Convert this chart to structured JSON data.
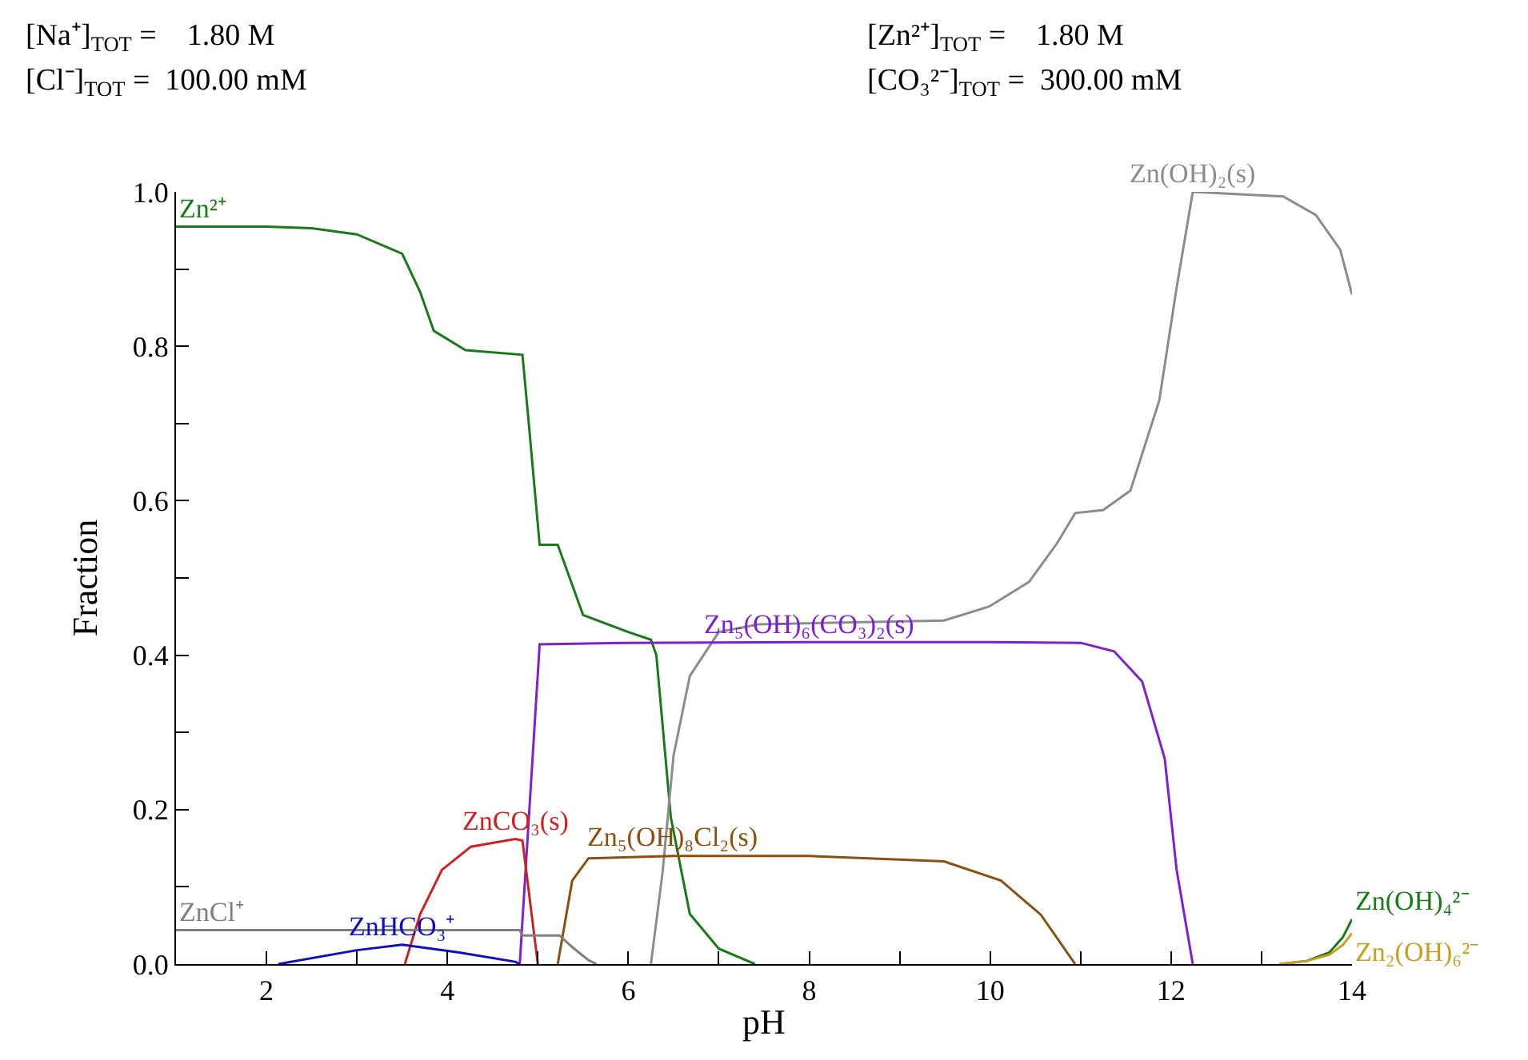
{
  "chart_data": {
    "type": "line",
    "xlabel": "pH",
    "ylabel": "Fraction",
    "annotations": [
      "[Na⁺]$_{TOT}$ =    1.80 M",
      "[Cl⁻]$_{TOT}$ =  100.00 mM",
      "[Zn²⁺]$_{TOT}$ =    1.80 M",
      "[CO₃²⁻]$_{TOT}$ =  300.00 mM"
    ],
    "xlim": [
      1,
      14
    ],
    "ylim": [
      0,
      1.0
    ],
    "xticks": [
      2,
      {
        "value": 3,
        "label": null
      },
      4,
      {
        "value": 5,
        "label": null
      },
      6,
      {
        "value": 7,
        "label": null
      },
      8,
      {
        "value": 9,
        "label": null
      },
      10,
      {
        "value": 11,
        "label": null
      },
      12,
      {
        "value": 13,
        "label": null
      },
      14
    ],
    "yticks": [
      {
        "value": 0,
        "label": "0.0"
      },
      {
        "value": 0.1,
        "label": null
      },
      0.2,
      {
        "value": 0.3,
        "label": null
      },
      0.4,
      {
        "value": 0.5,
        "label": null
      },
      0.6,
      {
        "value": 0.7,
        "label": null
      },
      0.8,
      {
        "value": 0.9,
        "label": null
      },
      {
        "value": 1.0,
        "label": "1.0"
      }
    ],
    "legend": false,
    "marker": "none",
    "line_style": "solid",
    "series": [
      {
        "name": "Zn²⁺",
        "color": "#1a7a1a",
        "x": [
          1,
          2,
          2.5,
          3,
          3.5,
          3.7,
          3.85,
          4.2,
          4.83,
          4.9,
          5.02,
          5.22,
          5.5,
          6.0,
          6.25,
          6.31,
          6.47,
          6.68,
          7.0,
          7.4
        ],
        "values": [
          0.955,
          0.955,
          0.953,
          0.945,
          0.92,
          0.87,
          0.82,
          0.795,
          0.789,
          0.7,
          0.543,
          0.543,
          0.452,
          0.43,
          0.42,
          0.4,
          0.19,
          0.065,
          0.02,
          0
        ]
      },
      {
        "name": "Zn(OH)₂(s)",
        "color": "#8c8c8c",
        "x": [
          6.25,
          6.38,
          6.5,
          6.68,
          7.0,
          7.44,
          9.49,
          9.99,
          10.43,
          10.74,
          10.94,
          11.25,
          11.55,
          11.87,
          12.06,
          12.24,
          13.24,
          13.6,
          13.87,
          14
        ],
        "values": [
          0,
          0.12,
          0.27,
          0.373,
          0.43,
          0.44,
          0.445,
          0.463,
          0.495,
          0.545,
          0.584,
          0.588,
          0.613,
          0.73,
          0.875,
          1.0,
          0.994,
          0.97,
          0.925,
          0.867
        ]
      },
      {
        "name": "Zn₅(OH)₆(CO₃)₂(s)",
        "color": "#7f1fcf",
        "x": [
          4.8,
          5.02,
          6,
          8,
          10,
          11.0,
          11.37,
          11.68,
          11.93,
          12.06,
          12.24
        ],
        "values": [
          0,
          0.414,
          0.416,
          0.417,
          0.417,
          0.416,
          0.405,
          0.366,
          0.266,
          0.123,
          0
        ]
      },
      {
        "name": "ZnCO₃(s)",
        "color": "#cc2222",
        "x": [
          3.53,
          3.7,
          3.94,
          4.26,
          4.75,
          4.83,
          5.0
        ],
        "values": [
          0,
          0.065,
          0.122,
          0.152,
          0.162,
          0.16,
          0
        ]
      },
      {
        "name": "Zn₅(OH)₈Cl₂(s)",
        "color": "#8b4f10",
        "x": [
          5.22,
          5.38,
          5.56,
          6.5,
          8,
          9.49,
          10.12,
          10.56,
          10.94
        ],
        "values": [
          0,
          0.108,
          0.137,
          0.14,
          0.14,
          0.133,
          0.108,
          0.064,
          0
        ]
      },
      {
        "name": "ZnCl⁺",
        "color": "#808080",
        "x": [
          1,
          4.8,
          4.83,
          5.24,
          5.38,
          5.56,
          5.65
        ],
        "values": [
          0.044,
          0.044,
          0.037,
          0.037,
          0.022,
          0.005,
          0
        ]
      },
      {
        "name": "ZnHCO₃⁺",
        "color": "#1010c0",
        "x": [
          2.13,
          3.0,
          3.5,
          4.13,
          4.75,
          4.8
        ],
        "values": [
          0,
          0.018,
          0.025,
          0.015,
          0.003,
          0
        ]
      },
      {
        "name": "Zn(OH)₄²⁻",
        "color": "#1a7a1a",
        "x": [
          13.2,
          13.5,
          13.75,
          13.9,
          14
        ],
        "values": [
          0,
          0.004,
          0.015,
          0.035,
          0.058
        ]
      },
      {
        "name": "Zn₂(OH)₆²⁻",
        "color": "#c8a020",
        "x": [
          13.2,
          13.5,
          13.75,
          13.9,
          14
        ],
        "values": [
          0,
          0.004,
          0.012,
          0.025,
          0.04
        ]
      }
    ]
  }
}
